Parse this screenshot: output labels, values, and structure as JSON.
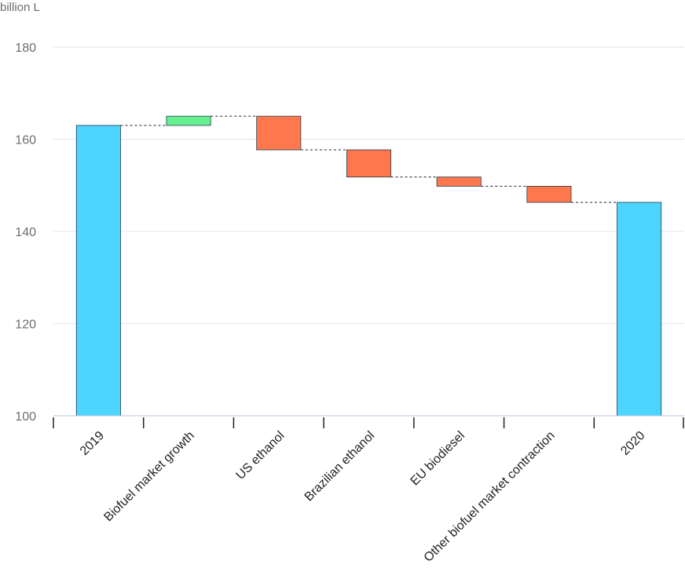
{
  "chart_data": {
    "type": "bar",
    "subtype": "waterfall",
    "ylabel": "billion L",
    "ylim": [
      100,
      180
    ],
    "yticks": [
      100,
      120,
      140,
      160,
      180
    ],
    "grid": true,
    "categories": [
      "2019",
      "Biofuel market growth",
      "US ethanol",
      "Brazilian ethanol",
      "EU biodiesel",
      "Other biofuel market contraction",
      "2020"
    ],
    "bars": [
      {
        "label": "2019",
        "kind": "total",
        "start": 100,
        "end": 163
      },
      {
        "label": "Biofuel market growth",
        "kind": "increase",
        "start": 163,
        "end": 165
      },
      {
        "label": "US ethanol",
        "kind": "decrease",
        "start": 165,
        "end": 157.7
      },
      {
        "label": "Brazilian ethanol",
        "kind": "decrease",
        "start": 157.7,
        "end": 151.8
      },
      {
        "label": "EU biodiesel",
        "kind": "decrease",
        "start": 151.8,
        "end": 149.8
      },
      {
        "label": "Other biofuel market contraction",
        "kind": "decrease",
        "start": 149.8,
        "end": 146.3
      },
      {
        "label": "2020",
        "kind": "total",
        "start": 100,
        "end": 146.3
      }
    ],
    "colors": {
      "total": "#4dd4ff",
      "increase": "#66f08f",
      "decrease": "#ff774d"
    }
  }
}
